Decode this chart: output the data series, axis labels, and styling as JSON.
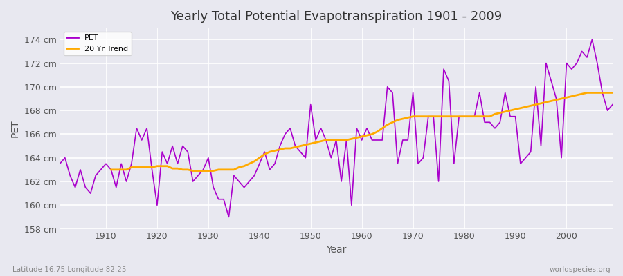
{
  "title": "Yearly Total Potential Evapotranspiration 1901 - 2009",
  "xlabel": "Year",
  "ylabel": "PET",
  "subtitle_left": "Latitude 16.75 Longitude 82.25",
  "subtitle_right": "worldspecies.org",
  "ylim": [
    158,
    175
  ],
  "yticks": [
    158,
    160,
    162,
    164,
    166,
    168,
    170,
    172,
    174
  ],
  "ytick_labels": [
    "158 cm",
    "160 cm",
    "162 cm",
    "164 cm",
    "166 cm",
    "168 cm",
    "170 cm",
    "172 cm",
    "174 cm"
  ],
  "xlim": [
    1901,
    2009
  ],
  "xticks": [
    1910,
    1920,
    1930,
    1940,
    1950,
    1960,
    1970,
    1980,
    1990,
    2000
  ],
  "pet_color": "#aa00cc",
  "trend_color": "#ffaa00",
  "bg_color": "#e8e8f0",
  "plot_bg_color": "#e8e8f0",
  "legend_labels": [
    "PET",
    "20 Yr Trend"
  ],
  "pet_years": [
    1901,
    1902,
    1903,
    1904,
    1905,
    1906,
    1907,
    1908,
    1909,
    1910,
    1911,
    1912,
    1913,
    1914,
    1915,
    1916,
    1917,
    1918,
    1919,
    1920,
    1921,
    1922,
    1923,
    1924,
    1925,
    1926,
    1927,
    1928,
    1929,
    1930,
    1931,
    1932,
    1933,
    1934,
    1935,
    1936,
    1937,
    1938,
    1939,
    1940,
    1941,
    1942,
    1943,
    1944,
    1945,
    1946,
    1947,
    1948,
    1949,
    1950,
    1951,
    1952,
    1953,
    1954,
    1955,
    1956,
    1957,
    1958,
    1959,
    1960,
    1961,
    1962,
    1963,
    1964,
    1965,
    1966,
    1967,
    1968,
    1969,
    1970,
    1971,
    1972,
    1973,
    1974,
    1975,
    1976,
    1977,
    1978,
    1979,
    1980,
    1981,
    1982,
    1983,
    1984,
    1985,
    1986,
    1987,
    1988,
    1989,
    1990,
    1991,
    1992,
    1993,
    1994,
    1995,
    1996,
    1997,
    1998,
    1999,
    2000,
    2001,
    2002,
    2003,
    2004,
    2005,
    2006,
    2007,
    2008,
    2009
  ],
  "pet_values": [
    163.5,
    164.0,
    162.5,
    161.5,
    163.0,
    161.5,
    161.0,
    162.5,
    163.0,
    163.5,
    163.0,
    161.5,
    163.5,
    162.0,
    163.5,
    166.5,
    165.5,
    166.5,
    163.0,
    160.0,
    164.5,
    163.5,
    165.0,
    163.5,
    165.0,
    164.5,
    162.0,
    162.5,
    163.0,
    164.0,
    161.5,
    160.5,
    160.5,
    159.0,
    162.5,
    162.0,
    161.5,
    162.0,
    162.5,
    163.5,
    164.5,
    163.0,
    163.5,
    165.0,
    166.0,
    166.5,
    165.0,
    164.5,
    164.0,
    168.5,
    165.5,
    166.5,
    165.5,
    164.0,
    165.5,
    162.0,
    165.5,
    160.0,
    166.5,
    165.5,
    166.5,
    165.5,
    165.5,
    165.5,
    170.0,
    169.5,
    163.5,
    165.5,
    165.5,
    169.5,
    163.5,
    164.0,
    167.5,
    167.5,
    162.0,
    171.5,
    170.5,
    163.5,
    167.5,
    167.5,
    167.5,
    167.5,
    169.5,
    167.0,
    167.0,
    166.5,
    167.0,
    169.5,
    167.5,
    167.5,
    163.5,
    164.0,
    164.5,
    170.0,
    165.0,
    172.0,
    170.5,
    169.0,
    164.0,
    172.0,
    171.5,
    172.0,
    173.0,
    172.5,
    174.0,
    172.0,
    169.5,
    168.0,
    168.5
  ],
  "trend_years": [
    1911,
    1912,
    1913,
    1914,
    1915,
    1916,
    1917,
    1918,
    1919,
    1920,
    1921,
    1922,
    1923,
    1924,
    1925,
    1926,
    1927,
    1928,
    1929,
    1930,
    1931,
    1932,
    1933,
    1934,
    1935,
    1936,
    1937,
    1938,
    1939,
    1940,
    1941,
    1942,
    1943,
    1944,
    1945,
    1946,
    1947,
    1948,
    1949,
    1950,
    1951,
    1952,
    1953,
    1954,
    1955,
    1956,
    1957,
    1958,
    1959,
    1960,
    1961,
    1962,
    1963,
    1964,
    1965,
    1966,
    1967,
    1968,
    1969,
    1970,
    1971,
    1972,
    1973,
    1974,
    1975,
    1976,
    1977,
    1978,
    1979,
    1980,
    1981,
    1982,
    1983,
    1984,
    1985,
    1986,
    1987,
    1988,
    1989,
    1990,
    1991,
    1992,
    1993,
    1994,
    1995,
    1996,
    1997,
    1998,
    1999,
    2000,
    2001,
    2002,
    2003,
    2004,
    2005,
    2006,
    2007,
    2008,
    2009
  ],
  "trend_values": [
    163.0,
    163.0,
    163.0,
    163.0,
    163.2,
    163.2,
    163.2,
    163.2,
    163.2,
    163.3,
    163.3,
    163.3,
    163.1,
    163.1,
    163.0,
    163.0,
    162.9,
    162.9,
    162.9,
    162.9,
    162.9,
    163.0,
    163.0,
    163.0,
    163.0,
    163.2,
    163.3,
    163.5,
    163.7,
    164.0,
    164.3,
    164.5,
    164.6,
    164.7,
    164.8,
    164.8,
    164.9,
    165.0,
    165.1,
    165.2,
    165.3,
    165.4,
    165.5,
    165.5,
    165.5,
    165.5,
    165.5,
    165.6,
    165.7,
    165.8,
    165.9,
    166.0,
    166.2,
    166.5,
    166.8,
    167.0,
    167.2,
    167.3,
    167.4,
    167.5,
    167.5,
    167.5,
    167.5,
    167.5,
    167.5,
    167.5,
    167.5,
    167.5,
    167.5,
    167.5,
    167.5,
    167.5,
    167.5,
    167.5,
    167.5,
    167.7,
    167.8,
    167.9,
    168.0,
    168.1,
    168.2,
    168.3,
    168.4,
    168.5,
    168.6,
    168.7,
    168.8,
    168.9,
    169.0,
    169.1,
    169.2,
    169.3,
    169.4,
    169.5,
    169.5,
    169.5,
    169.5,
    169.5,
    169.5
  ]
}
